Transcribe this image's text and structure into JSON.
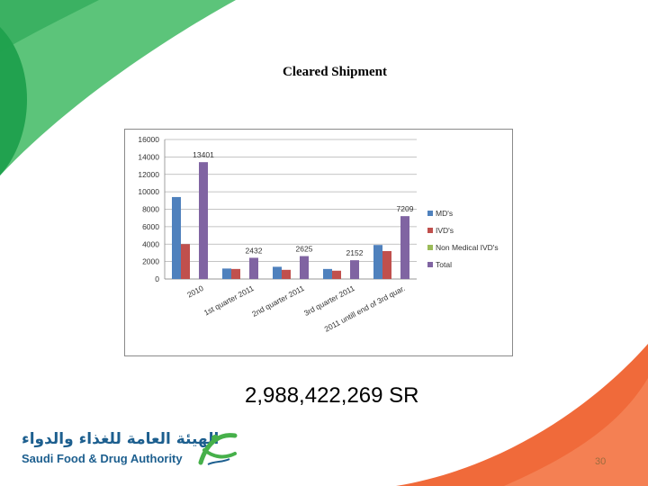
{
  "slide": {
    "title": "Cleared Shipment",
    "amount": "2,988,422,269 SR",
    "page_number": "30"
  },
  "logo": {
    "arabic": "الهيئة العامة للغذاء والدواء",
    "english": "Saudi Food & Drug Authority"
  },
  "colors": {
    "deco_green_light": "#5cc47a",
    "deco_green_dark": "#21a24f",
    "deco_orange": "#f06a3a",
    "logo_blue": "#1d5f8f",
    "logo_green": "#46b04a"
  },
  "chart_data": {
    "type": "bar",
    "categories": [
      "2010",
      "1st quarter 2011",
      "2nd quarter 2011",
      "3rd quarter 2011",
      "2011 untill end of 3rd quar."
    ],
    "series": [
      {
        "name": "MD's",
        "color": "#4f81bd",
        "values": [
          9400,
          1200,
          1400,
          1150,
          3900
        ]
      },
      {
        "name": "IVD's",
        "color": "#c0504d",
        "values": [
          4000,
          1150,
          1050,
          950,
          3200
        ]
      },
      {
        "name": "Non Medical IVD's",
        "color": "#9bbb59",
        "values": [
          0,
          0,
          0,
          0,
          0
        ]
      },
      {
        "name": "Total",
        "color": "#8064a2",
        "values": [
          13401,
          2432,
          2625,
          2152,
          7209
        ]
      }
    ],
    "data_labels": {
      "series": "Total",
      "values": [
        "13401",
        "2432",
        "2625",
        "2152",
        "7209"
      ]
    },
    "y_ticks": [
      "0",
      "2000",
      "4000",
      "6000",
      "8000",
      "10000",
      "12000",
      "14000",
      "16000"
    ],
    "ylim": [
      0,
      16000
    ],
    "grid": true,
    "legend_position": "right"
  }
}
